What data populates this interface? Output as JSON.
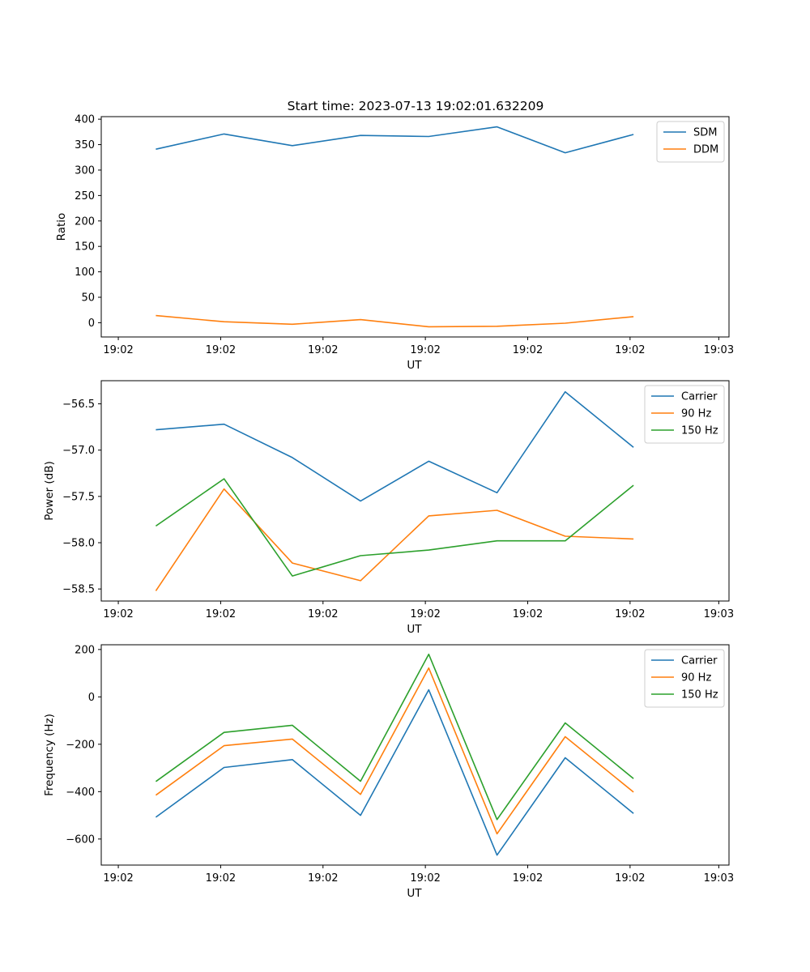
{
  "figure_title": "Start time: 2023-07-13 19:02:01.632209",
  "colors": {
    "blue": "#1f77b4",
    "orange": "#ff7f0e",
    "green": "#2ca02c"
  },
  "chart_data": [
    {
      "type": "line",
      "xlabel": "UT",
      "ylabel": "Ratio",
      "ylim": [
        -28,
        405
      ],
      "yticks": [
        0,
        50,
        100,
        150,
        200,
        250,
        300,
        350,
        400
      ],
      "xticks": [
        "19:02",
        "19:02",
        "19:02",
        "19:02",
        "19:02",
        "19:02",
        "19:03"
      ],
      "legend": "top-right",
      "x": [
        1,
        2,
        3,
        4,
        5,
        6,
        7,
        8
      ],
      "series": [
        {
          "name": "SDM",
          "color": "#1f77b4",
          "values": [
            341,
            371,
            348,
            368,
            366,
            385,
            334,
            370
          ]
        },
        {
          "name": "DDM",
          "color": "#ff7f0e",
          "values": [
            14,
            2,
            -3,
            6,
            -8,
            -7,
            -1,
            12
          ]
        }
      ]
    },
    {
      "type": "line",
      "xlabel": "UT",
      "ylabel": "Power (dB)",
      "ylim": [
        -58.63,
        -56.25
      ],
      "yticks": [
        -58.5,
        -58.0,
        -57.5,
        -57.0,
        -56.5
      ],
      "ytick_labels": [
        "−58.5",
        "−58.0",
        "−57.5",
        "−57.0",
        "−56.5"
      ],
      "xticks": [
        "19:02",
        "19:02",
        "19:02",
        "19:02",
        "19:02",
        "19:02",
        "19:03"
      ],
      "legend": "top-right",
      "x": [
        1,
        2,
        3,
        4,
        5,
        6,
        7,
        8
      ],
      "series": [
        {
          "name": "Carrier",
          "color": "#1f77b4",
          "values": [
            -56.78,
            -56.72,
            -57.08,
            -57.55,
            -57.12,
            -57.46,
            -56.37,
            -56.97
          ]
        },
        {
          "name": "90 Hz",
          "color": "#ff7f0e",
          "values": [
            -58.52,
            -57.42,
            -58.22,
            -58.41,
            -57.71,
            -57.65,
            -57.93,
            -57.96
          ]
        },
        {
          "name": "150 Hz",
          "color": "#2ca02c",
          "values": [
            -57.82,
            -57.31,
            -58.36,
            -58.14,
            -58.08,
            -57.98,
            -57.98,
            -57.38
          ]
        }
      ]
    },
    {
      "type": "line",
      "xlabel": "UT",
      "ylabel": "Frequency (Hz)",
      "ylim": [
        -710,
        220
      ],
      "yticks": [
        -600,
        -400,
        -200,
        0,
        200
      ],
      "ytick_labels": [
        "−600",
        "−400",
        "−200",
        "0",
        "200"
      ],
      "xticks": [
        "19:02",
        "19:02",
        "19:02",
        "19:02",
        "19:02",
        "19:02",
        "19:03"
      ],
      "legend": "top-right",
      "x": [
        1,
        2,
        3,
        4,
        5,
        6,
        7,
        8
      ],
      "series": [
        {
          "name": "Carrier",
          "color": "#1f77b4",
          "values": [
            -508,
            -298,
            -265,
            -500,
            30,
            -668,
            -257,
            -492
          ]
        },
        {
          "name": "90 Hz",
          "color": "#ff7f0e",
          "values": [
            -415,
            -206,
            -178,
            -412,
            122,
            -578,
            -168,
            -402
          ]
        },
        {
          "name": "150 Hz",
          "color": "#2ca02c",
          "values": [
            -357,
            -150,
            -120,
            -356,
            180,
            -518,
            -110,
            -345
          ]
        }
      ]
    }
  ]
}
